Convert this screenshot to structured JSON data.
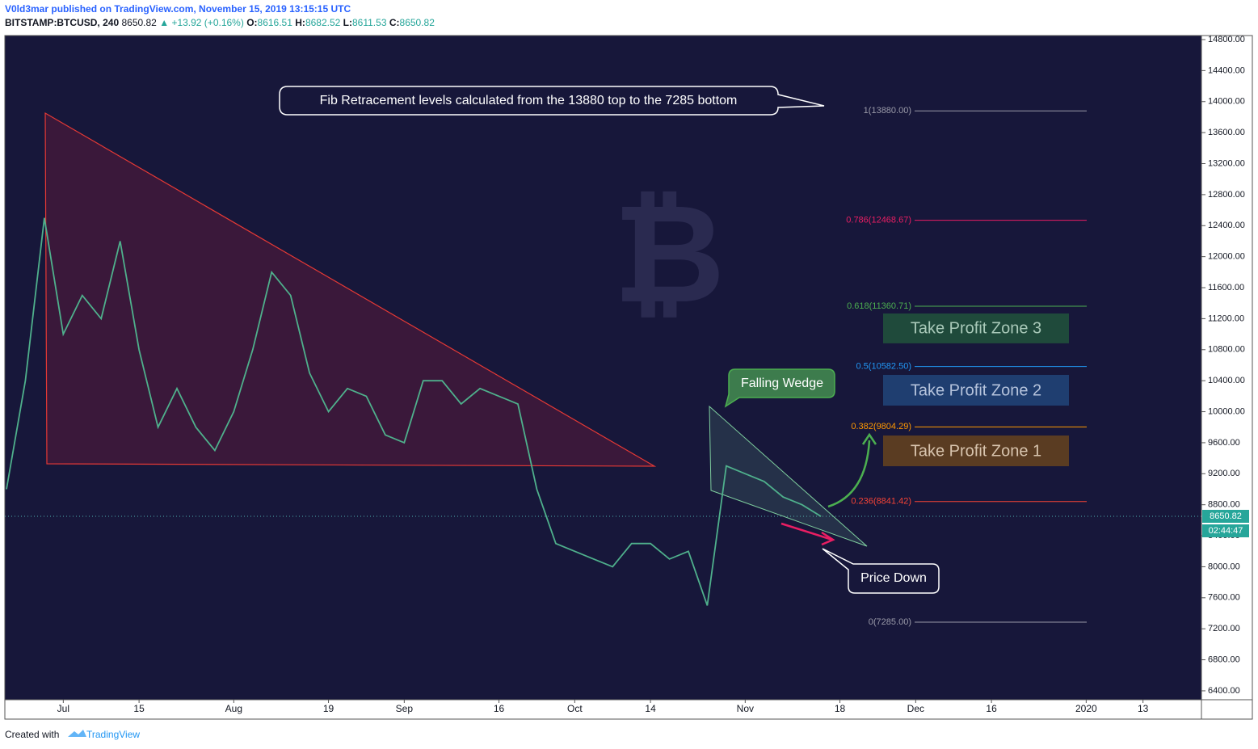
{
  "header": {
    "published": "V0ld3mar published on TradingView.com, November 15, 2019 13:15:15 UTC",
    "symbol": "BITSTAMP:BTCUSD, 240",
    "last": "8650.82",
    "arrow": "▲",
    "change": "+13.92 (+0.16%)",
    "o_label": "O:",
    "o": "8616.51",
    "h_label": "H:",
    "h": "8682.52",
    "l_label": "L:",
    "l": "8611.53",
    "c_label": "C:",
    "c": "8650.82"
  },
  "chart_data": {
    "type": "line",
    "color": "#4fb08c",
    "grid": false,
    "watermark": "₿",
    "categories": [
      null,
      null,
      null,
      "Jul",
      null,
      null,
      null,
      "15",
      null,
      null,
      null,
      null,
      "Aug",
      null,
      null,
      null,
      null,
      "19",
      null,
      null,
      null,
      "Sep",
      null,
      null,
      null,
      null,
      "16",
      null,
      null,
      null,
      "Oct",
      null,
      null,
      null,
      "14",
      null,
      null,
      null,
      null,
      "Nov",
      null,
      null,
      null,
      null,
      "18",
      null,
      null,
      null,
      "Dec",
      null,
      null,
      null,
      "16",
      null,
      null,
      null,
      null,
      "2020",
      null,
      null,
      "13",
      null,
      null,
      null
    ],
    "values": [
      9000,
      10400,
      12500,
      11000,
      11500,
      11200,
      12200,
      10800,
      9800,
      10300,
      9800,
      9500,
      10000,
      10800,
      11800,
      11500,
      10500,
      10000,
      10300,
      10200,
      9700,
      9600,
      10400,
      10400,
      10100,
      10300,
      10200,
      10100,
      9000,
      8300,
      8200,
      8100,
      8000,
      8300,
      8300,
      8100,
      8200,
      7500,
      9300,
      9200,
      9100,
      8900,
      8800,
      8650,
      null,
      null,
      null,
      null,
      null,
      null,
      null,
      null,
      null,
      null,
      null,
      null,
      null,
      null,
      null,
      null,
      null,
      null,
      null,
      null
    ],
    "ylim": [
      6285,
      14852
    ],
    "yticks": [
      {
        "value": 6400,
        "label": "6400.00"
      },
      {
        "value": 6800,
        "label": "6800.00"
      },
      {
        "value": 7200,
        "label": "7200.00"
      },
      {
        "value": 7600,
        "label": "7600.00"
      },
      {
        "value": 8000,
        "label": "8000.00"
      },
      {
        "value": 8400,
        "label": "8400.00"
      },
      {
        "value": 8800,
        "label": "8800.00"
      },
      {
        "value": 9200,
        "label": "9200.00"
      },
      {
        "value": 9600,
        "label": "9600.00"
      },
      {
        "value": 10000,
        "label": "10000.00"
      },
      {
        "value": 10400,
        "label": "10400.00"
      },
      {
        "value": 10800,
        "label": "10800.00"
      },
      {
        "value": 11200,
        "label": "11200.00"
      },
      {
        "value": 11600,
        "label": "11600.00"
      },
      {
        "value": 12000,
        "label": "12000.00"
      },
      {
        "value": 12400,
        "label": "12400.00"
      },
      {
        "value": 12800,
        "label": "12800.00"
      },
      {
        "value": 13200,
        "label": "13200.00"
      },
      {
        "value": 13600,
        "label": "13600.00"
      },
      {
        "value": 14000,
        "label": "14000.00"
      },
      {
        "value": 14400,
        "label": "14400.00"
      },
      {
        "value": 14800,
        "label": "14800.00"
      }
    ],
    "last_price": {
      "value": 8650.82,
      "label": "8650.82"
    },
    "countdown": "02:44:47",
    "fib_levels": [
      {
        "label": "1(13880.00)",
        "value": 13880,
        "color": "#9a9aa8"
      },
      {
        "label": "0.786(12468.67)",
        "value": 12468.67,
        "color": "#e91e63"
      },
      {
        "label": "0.618(11360.71)",
        "value": 11360.71,
        "color": "#4caf50"
      },
      {
        "label": "0.5(10582.50)",
        "value": 10582.5,
        "color": "#2196f3"
      },
      {
        "label": "0.382(9804.29)",
        "value": 9804.29,
        "color": "#ff9800"
      },
      {
        "label": "0.236(8841.42)",
        "value": 8841.42,
        "color": "#f44336"
      },
      {
        "label": "0(7285.00)",
        "value": 7285,
        "color": "#9a9aa8"
      }
    ],
    "zones": [
      {
        "label": "Take Profit Zone 3",
        "high": 11267,
        "low": 10882,
        "color": "#1f4a3b",
        "text_color": "#a9c9b9"
      },
      {
        "label": "Take Profit Zone 2",
        "high": 10475,
        "low": 10079,
        "color": "#1f3e70",
        "text_color": "#b5c3dc"
      },
      {
        "label": "Take Profit Zone 1",
        "high": 9693,
        "low": 9297,
        "color": "#5a3c22",
        "text_color": "#d8c4ae"
      }
    ],
    "annotations": {
      "fib_note": "Fib Retracement levels calculated from the 13880 top to the 7285 bottom",
      "wedge": "Falling Wedge",
      "down": "Price Down"
    }
  },
  "footer": {
    "created": "Created with",
    "brand": "TradingView"
  }
}
